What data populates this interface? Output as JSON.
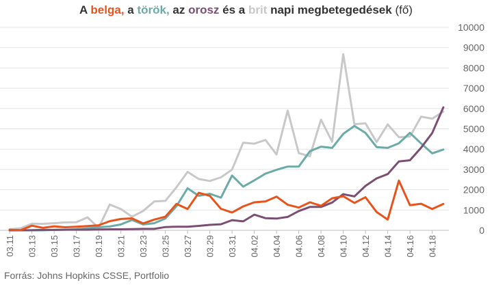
{
  "title_parts": {
    "p1": "A ",
    "s1": "belga,",
    "p2": " a ",
    "s2": "török,",
    "p3": " az ",
    "s3": "orosz",
    "p4": " és a ",
    "s4": "brit",
    "p5": " napi megbetegedések ",
    "p6": "(fő)"
  },
  "source": "Forrás: Johns Hopkins CSSE, Portfolio",
  "chart_data": {
    "type": "line",
    "title": "A belga, a török, az orosz és a brit napi megbetegedések (fő)",
    "xlabel": "",
    "ylabel": "",
    "ylim": [
      0,
      10000
    ],
    "yticks": [
      0,
      1000,
      2000,
      3000,
      4000,
      5000,
      6000,
      7000,
      8000,
      9000,
      10000
    ],
    "grid": true,
    "y_axis_side": "right",
    "x": [
      "03.11",
      "03.12",
      "03.13",
      "03.14",
      "03.15",
      "03.16",
      "03.17",
      "03.18",
      "03.19",
      "03.20",
      "03.21",
      "03.22",
      "03.23",
      "03.24",
      "03.25",
      "03.26",
      "03.27",
      "03.28",
      "03.29",
      "03.30",
      "03.31",
      "04.01",
      "04.02",
      "04.03",
      "04.04",
      "04.05",
      "04.06",
      "04.07",
      "04.08",
      "04.09",
      "04.10",
      "04.11",
      "04.12",
      "04.13",
      "04.14",
      "04.15",
      "04.16",
      "04.17",
      "04.18",
      "04.19"
    ],
    "x_tick_labels": [
      "03.11",
      "03.13",
      "03.15",
      "03.17",
      "03.19",
      "03.21",
      "03.23",
      "03.25",
      "03.27",
      "03.29",
      "03.31",
      "04.02",
      "04.04",
      "04.06",
      "04.08",
      "04.10",
      "04.12",
      "04.14",
      "04.16",
      "04.18"
    ],
    "series": [
      {
        "name": "brit",
        "color": "#c8c8c8",
        "values": [
          50,
          100,
          330,
          320,
          350,
          390,
          400,
          640,
          120,
          1270,
          1050,
          670,
          950,
          1420,
          1450,
          2120,
          2880,
          2530,
          2430,
          2610,
          2990,
          4320,
          4270,
          4450,
          3740,
          5900,
          3800,
          3650,
          5450,
          4360,
          8680,
          5230,
          5270,
          4350,
          5220,
          4590,
          4620,
          5600,
          5500,
          5850
        ]
      },
      {
        "name": "török",
        "color": "#6aaba8",
        "values": [
          0,
          0,
          0,
          0,
          20,
          30,
          50,
          100,
          150,
          190,
          290,
          510,
          290,
          350,
          580,
          1190,
          2070,
          1700,
          1800,
          1610,
          2700,
          2150,
          2460,
          2790,
          2980,
          3140,
          3140,
          3900,
          4120,
          4060,
          4750,
          5140,
          4800,
          4100,
          4060,
          4290,
          4800,
          4280,
          3790,
          3980
        ]
      },
      {
        "name": "orosz",
        "color": "#7a4f73",
        "values": [
          0,
          0,
          10,
          20,
          20,
          30,
          30,
          30,
          40,
          50,
          50,
          60,
          70,
          70,
          160,
          180,
          180,
          220,
          270,
          300,
          500,
          440,
          770,
          600,
          580,
          660,
          950,
          1150,
          1150,
          1370,
          1780,
          1670,
          2190,
          2560,
          2770,
          3390,
          3450,
          4070,
          4790,
          6060
        ]
      },
      {
        "name": "belga",
        "color": "#e8531b",
        "values": [
          30,
          10,
          230,
          120,
          200,
          150,
          180,
          210,
          250,
          450,
          560,
          590,
          340,
          530,
          670,
          1300,
          1050,
          1850,
          1700,
          1060,
          880,
          1180,
          1380,
          1420,
          1660,
          1260,
          1120,
          1380,
          1210,
          1580,
          1680,
          1350,
          1630,
          900,
          530,
          2450,
          1240,
          1310,
          1050,
          1300
        ]
      }
    ]
  }
}
